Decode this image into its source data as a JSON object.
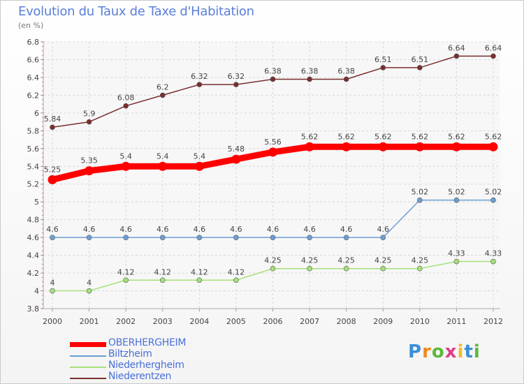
{
  "page": {
    "title": "Evolution du Taux de Taxe d'Habitation",
    "subtitle": "(en %)"
  },
  "chart_data": {
    "type": "line",
    "x": [
      "2000",
      "2001",
      "2002",
      "2003",
      "2004",
      "2005",
      "2006",
      "2007",
      "2008",
      "2009",
      "2010",
      "2011",
      "2012"
    ],
    "ylim": [
      3.8,
      6.8
    ],
    "yticks": [
      "3.8",
      "4",
      "4.2",
      "4.4",
      "4.6",
      "4.8",
      "5",
      "5.2",
      "5.4",
      "5.6",
      "5.8",
      "6",
      "6.2",
      "6.4",
      "6.6",
      "6.8"
    ],
    "grid": true,
    "series": [
      {
        "name": "OBERHERGHEIM",
        "color": "#ff0000",
        "values": [
          5.25,
          5.35,
          5.4,
          5.4,
          5.4,
          5.48,
          5.56,
          5.62,
          5.62,
          5.62,
          5.62,
          5.62,
          5.62
        ],
        "labels": [
          "5.25",
          "5.35",
          "5.4",
          "5.4",
          "5.4",
          "5.48",
          "5.56",
          "5.62",
          "5.62",
          "5.62",
          "5.62",
          "5.62",
          "5.62"
        ]
      },
      {
        "name": "Biltzheim",
        "color": "#6b9fd4",
        "values": [
          4.6,
          4.6,
          4.6,
          4.6,
          4.6,
          4.6,
          4.6,
          4.6,
          4.6,
          4.6,
          5.02,
          5.02,
          5.02
        ],
        "labels": [
          "4.6",
          "4.6",
          "4.6",
          "4.6",
          "4.6",
          "4.6",
          "4.6",
          "4.6",
          "4.6",
          "4.6",
          "5.02",
          "5.02",
          "5.02"
        ]
      },
      {
        "name": "Niederhergheim",
        "color": "#a6e07a",
        "values": [
          4,
          4,
          4.12,
          4.12,
          4.12,
          4.12,
          4.25,
          4.25,
          4.25,
          4.25,
          4.25,
          4.33,
          4.33
        ],
        "labels": [
          "4",
          "4",
          "4.12",
          "4.12",
          "4.12",
          "4.12",
          "4.25",
          "4.25",
          "4.25",
          "4.25",
          "4.25",
          "4.33",
          "4.33"
        ]
      },
      {
        "name": "Niederentzen",
        "color": "#7a2e2e",
        "values": [
          5.84,
          5.9,
          6.08,
          6.2,
          6.32,
          6.32,
          6.38,
          6.38,
          6.38,
          6.51,
          6.51,
          6.64,
          6.64
        ],
        "labels": [
          "5.84",
          "5.9",
          "6.08",
          "6.2",
          "6.32",
          "6.32",
          "6.38",
          "6.38",
          "6.38",
          "6.51",
          "6.51",
          "6.64",
          "6.64"
        ]
      }
    ]
  },
  "legend": [
    {
      "label": "OBERHERGHEIM",
      "color": "#ff0000"
    },
    {
      "label": "Biltzheim",
      "color": "#6b9fd4"
    },
    {
      "label": "Niederhergheim",
      "color": "#a6e07a"
    },
    {
      "label": "Niederentzen",
      "color": "#7a2e2e"
    }
  ],
  "logo": {
    "text": "Proxiti"
  }
}
